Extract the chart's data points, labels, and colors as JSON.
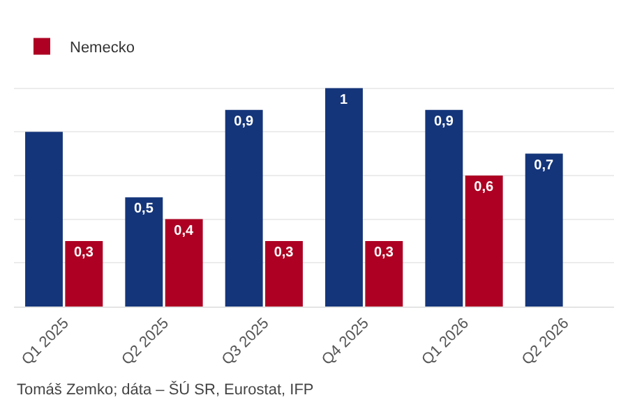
{
  "chart_data": {
    "type": "bar",
    "categories": [
      "Q1 2025",
      "Q2 2025",
      "Q3 2025",
      "Q4 2025",
      "Q1 2026",
      "Q2 2026"
    ],
    "series": [
      {
        "color": "#14357a",
        "values": [
          0.8,
          0.5,
          0.9,
          1,
          0.9,
          0.7
        ],
        "value_labels": [
          null,
          "0,5",
          "0,9",
          "1",
          "0,9",
          "0,7"
        ]
      },
      {
        "name": "Nemecko",
        "color": "#ad0022",
        "values": [
          0.3,
          0.4,
          0.3,
          0.3,
          0.6,
          null
        ],
        "value_labels": [
          "0,3",
          "0,4",
          "0,3",
          "0,3",
          "0,6",
          null
        ]
      }
    ],
    "yticks": [
      {
        "value": 0,
        "label": null
      },
      {
        "value": 0.2,
        "label": null
      },
      {
        "value": 0.4,
        "label": null
      },
      {
        "value": 0.6,
        "label": null
      },
      {
        "value": 0.8,
        "label": null
      },
      {
        "value": 1,
        "label": null
      }
    ],
    "grid": "y",
    "legend": "top left",
    "tick_labels": "x",
    "annotations": [
      "Tomáš Zemko; dáta – ŠÚ SR, Eurostat, IFP"
    ]
  }
}
